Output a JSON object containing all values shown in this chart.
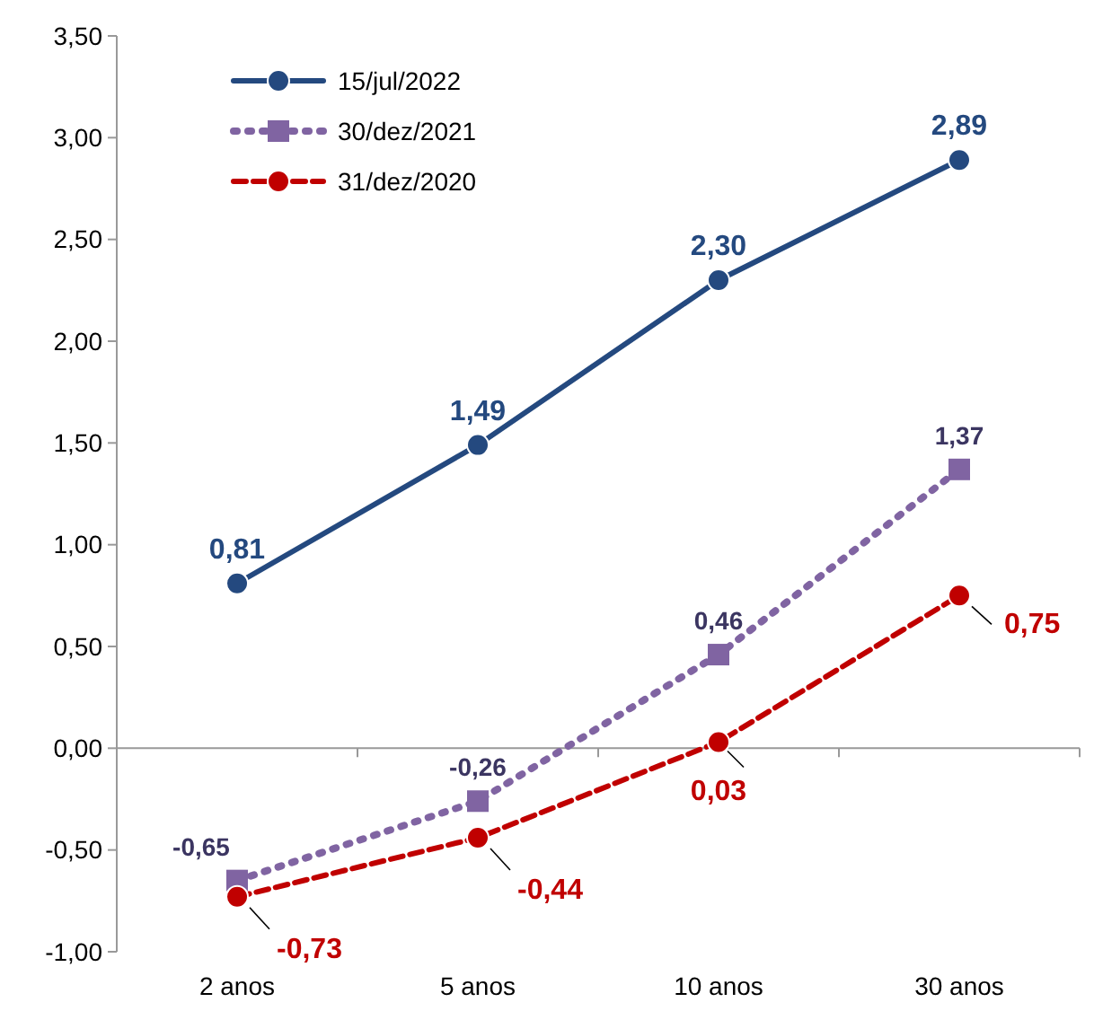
{
  "chart_data": {
    "type": "line",
    "categories": [
      "2 anos",
      "5 anos",
      "10 anos",
      "30 anos"
    ],
    "series": [
      {
        "name": "15/jul/2022",
        "color": "#24497f",
        "values": [
          0.81,
          1.49,
          2.3,
          2.89
        ],
        "value_labels": [
          "0,81",
          "1,49",
          "2,30",
          "2,89"
        ],
        "marker": "circle",
        "line_style": "solid"
      },
      {
        "name": "30/dez/2021",
        "color": "#8064a2",
        "values": [
          -0.65,
          -0.26,
          0.46,
          1.37
        ],
        "value_labels": [
          "-0,65",
          "-0,26",
          "0,46",
          "1,37"
        ],
        "marker": "square",
        "line_style": "dotted"
      },
      {
        "name": "31/dez/2020",
        "color": "#c00000",
        "values": [
          -0.73,
          -0.44,
          0.03,
          0.75
        ],
        "value_labels": [
          "-0,73",
          "-0,44",
          "0,03",
          "0,75"
        ],
        "marker": "circle",
        "line_style": "dashed"
      }
    ],
    "ylim": [
      -1,
      3.5
    ],
    "yticks": [
      {
        "value": -1,
        "label": "-1,00"
      },
      {
        "value": -0.5,
        "label": "-0,50"
      },
      {
        "value": 0,
        "label": "0,00"
      },
      {
        "value": 0.5,
        "label": "0,50"
      },
      {
        "value": 1,
        "label": "1,00"
      },
      {
        "value": 1.5,
        "label": "1,50"
      },
      {
        "value": 2,
        "label": "2,00"
      },
      {
        "value": 2.5,
        "label": "2,50"
      },
      {
        "value": 3,
        "label": "3,00"
      },
      {
        "value": 3.5,
        "label": "3,50"
      }
    ],
    "legend": "top left"
  }
}
